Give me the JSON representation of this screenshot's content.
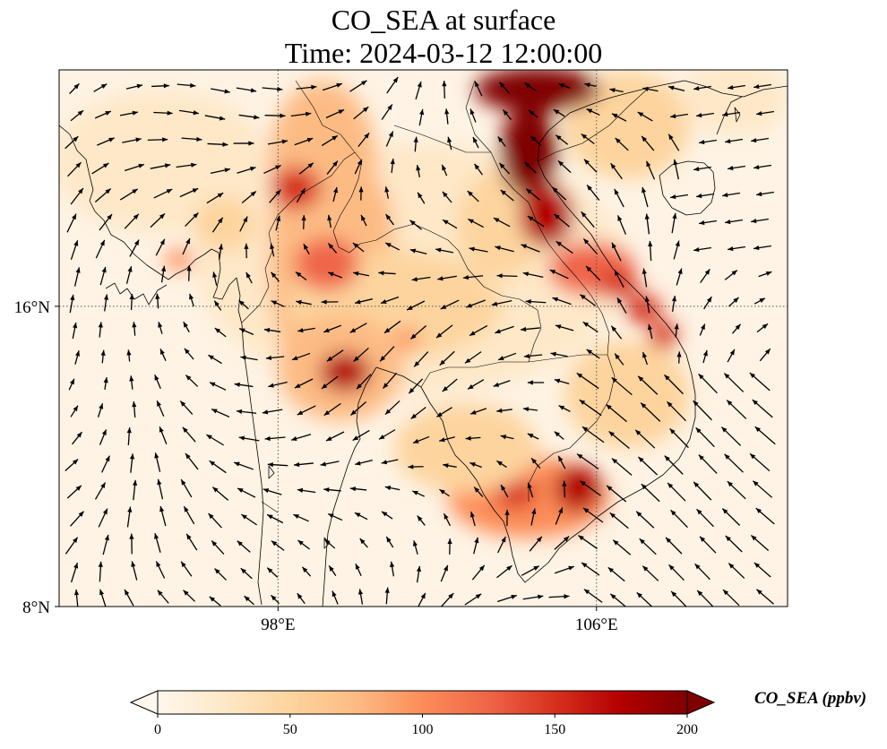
{
  "title": {
    "line1": "CO_SEA at surface",
    "line2": "Time: 2024-03-12 12:00:00"
  },
  "map": {
    "lon_range": [
      92.5,
      110.8
    ],
    "lat_range": [
      8,
      22.3
    ],
    "lat_ticks": [
      {
        "value": 16,
        "label": "16°N"
      },
      {
        "value": 8,
        "label": "8°N"
      }
    ],
    "lon_ticks": [
      {
        "value": 98,
        "label": "98°E"
      },
      {
        "value": 106,
        "label": "106°E"
      }
    ],
    "gridlines": "dotted",
    "field": "CO_SEA",
    "wind_vectors": true
  },
  "colorbar": {
    "title": "CO_SEA (ppbv)",
    "min": 0,
    "max": 200,
    "ticks": [
      {
        "value": 0,
        "label": "0"
      },
      {
        "value": 50,
        "label": "50"
      },
      {
        "value": 100,
        "label": "100"
      },
      {
        "value": 150,
        "label": "150"
      },
      {
        "value": 200,
        "label": "200"
      }
    ],
    "extend": "both",
    "colormap": "OrRd",
    "colors": [
      "#fff7ec",
      "#fee8c8",
      "#fdd49e",
      "#fdbb84",
      "#fc8d59",
      "#ef6548",
      "#d7301f",
      "#b30000",
      "#7f0000"
    ]
  }
}
